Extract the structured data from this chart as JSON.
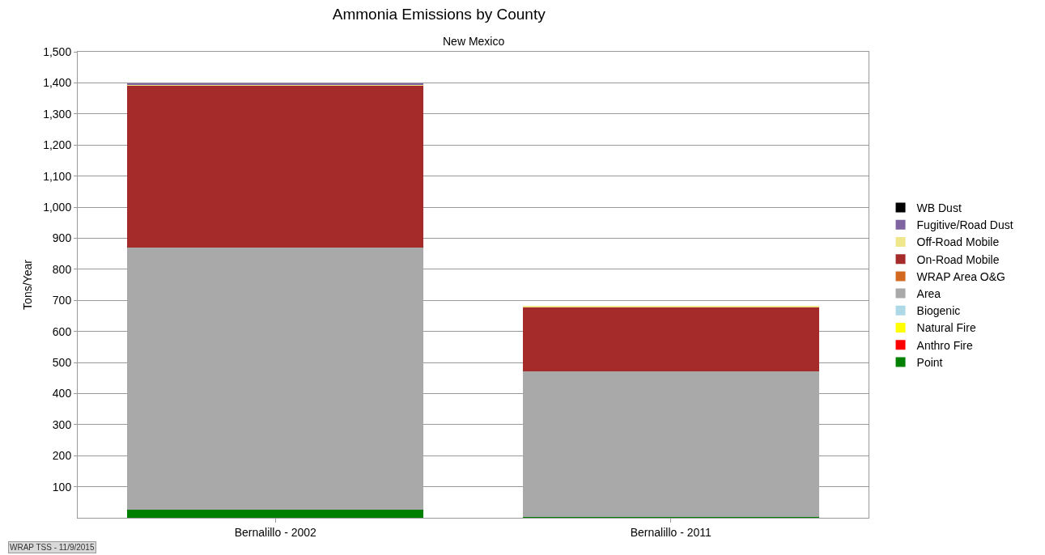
{
  "chart_data": {
    "type": "bar",
    "stacked": true,
    "title": "Ammonia Emissions by County",
    "subtitle": "New Mexico",
    "ylabel": "Tons/Year",
    "categories": [
      "Bernalillo - 2002",
      "Bernalillo - 2011"
    ],
    "series": [
      {
        "name": "Point",
        "color": "#008000",
        "values": [
          25,
          2
        ]
      },
      {
        "name": "Anthro Fire",
        "color": "#ff0000",
        "values": [
          0,
          0
        ]
      },
      {
        "name": "Natural Fire",
        "color": "#ffff00",
        "values": [
          0,
          0
        ]
      },
      {
        "name": "Biogenic",
        "color": "#add8e6",
        "values": [
          0,
          0
        ]
      },
      {
        "name": "Area",
        "color": "#a9a9a9",
        "values": [
          845,
          469
        ]
      },
      {
        "name": "WRAP Area O&G",
        "color": "#d2691e",
        "values": [
          0,
          0
        ]
      },
      {
        "name": "On-Road Mobile",
        "color": "#a52a2a",
        "values": [
          522,
          207
        ]
      },
      {
        "name": "Off-Road Mobile",
        "color": "#f0e68c",
        "values": [
          3,
          4
        ]
      },
      {
        "name": "Fugitive/Road Dust",
        "color": "#8064a2",
        "values": [
          1,
          0
        ]
      },
      {
        "name": "WB Dust",
        "color": "#000000",
        "values": [
          0,
          0
        ]
      }
    ],
    "ylim": [
      0,
      1500
    ],
    "yticks": [
      100,
      200,
      300,
      400,
      500,
      600,
      700,
      800,
      900,
      {
        "value": 1000,
        "label": "1,000"
      },
      {
        "value": 1100,
        "label": "1,100"
      },
      {
        "value": 1200,
        "label": "1,200"
      },
      {
        "value": 1300,
        "label": "1,300"
      },
      {
        "value": 1400,
        "label": "1,400"
      },
      {
        "value": 1500,
        "label": "1,500"
      }
    ],
    "grid": "y",
    "legend": "right",
    "annotations": [
      "WRAP TSS - 11/9/2015"
    ]
  }
}
